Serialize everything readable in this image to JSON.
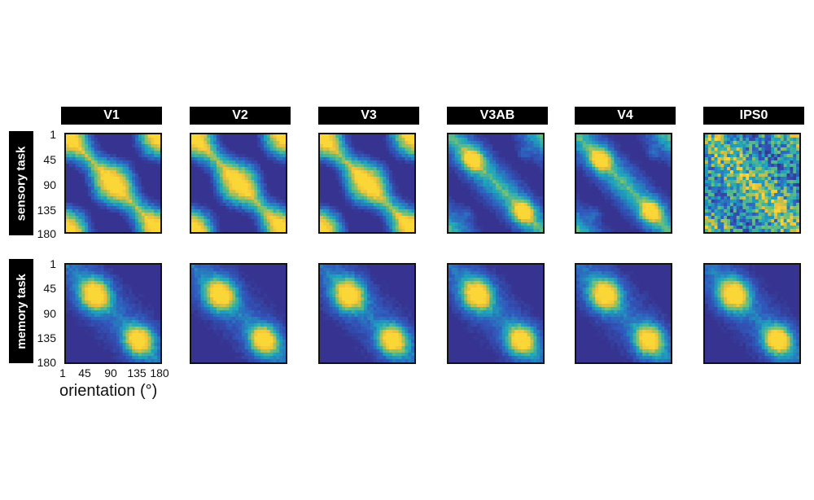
{
  "chart_data": {
    "type": "heatmap",
    "columns": [
      "V1",
      "V2",
      "V3",
      "V3AB",
      "V4",
      "IPS0"
    ],
    "rows": [
      "sensory task",
      "memory task"
    ],
    "xlabel": "orientation (°)",
    "x_ticks": [
      "1",
      "45",
      "90",
      "135",
      "180"
    ],
    "y_ticks": [
      "1",
      "45",
      "90",
      "135",
      "180"
    ],
    "axis_range": [
      1,
      180
    ],
    "colormap": {
      "low": "#3e3d9a",
      "mid": "#1fa9b8",
      "high": "#f7d13d"
    },
    "panels": [
      {
        "row": "sensory task",
        "column": "V1",
        "pattern": "diagonal with off-diagonal cross at 1/180"
      },
      {
        "row": "sensory task",
        "column": "V2",
        "pattern": "diagonal with off-diagonal cross at 1/180"
      },
      {
        "row": "sensory task",
        "column": "V3",
        "pattern": "diagonal with off-diagonal cross at 1/180"
      },
      {
        "row": "sensory task",
        "column": "V3AB",
        "pattern": "diagonal blobs near 45 and 135"
      },
      {
        "row": "sensory task",
        "column": "V4",
        "pattern": "diagonal blobs near 45 and 135"
      },
      {
        "row": "sensory task",
        "column": "IPS0",
        "pattern": "noisy, weak structure"
      },
      {
        "row": "memory task",
        "column": "V1",
        "pattern": "diagonal two-block"
      },
      {
        "row": "memory task",
        "column": "V2",
        "pattern": "diagonal two-block"
      },
      {
        "row": "memory task",
        "column": "V3",
        "pattern": "diagonal two-block"
      },
      {
        "row": "memory task",
        "column": "V3AB",
        "pattern": "diagonal two-block"
      },
      {
        "row": "memory task",
        "column": "V4",
        "pattern": "diagonal two-block"
      },
      {
        "row": "memory task",
        "column": "IPS0",
        "pattern": "diagonal two-block"
      }
    ]
  }
}
